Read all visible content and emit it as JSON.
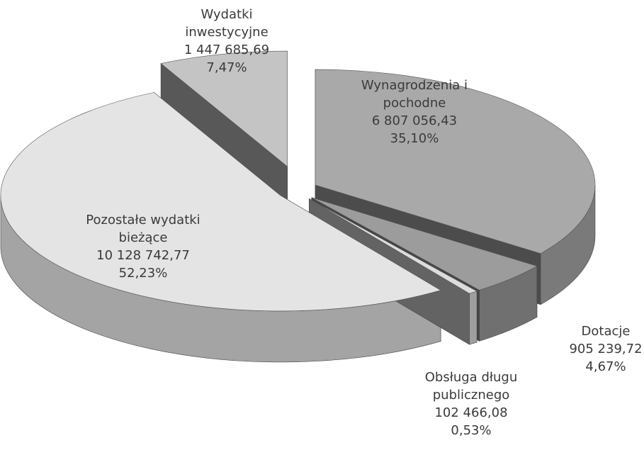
{
  "chart_data": {
    "type": "pie3d",
    "categories": [
      "Wynagrodzenia i pochodne",
      "Dotacje",
      "Obsługa długu publicznego",
      "Pozostałe wydatki bieżące",
      "Wydatki inwestycyjne"
    ],
    "values": [
      6807056.43,
      905239.72,
      102466.08,
      10128742.77,
      1447685.69
    ],
    "value_labels": [
      "6 807 056,43",
      "905 239,72",
      "102 466,08",
      "10 128 742,77",
      "1 447 685,69"
    ],
    "percents": [
      35.1,
      4.67,
      0.53,
      52.23,
      7.47
    ],
    "percent_labels": [
      "35,10%",
      "4,67%",
      "0,53%",
      "52,23%",
      "7,47%"
    ],
    "colors": [
      "#a9a9a9",
      "#9c9c9c",
      "#dcdcdc",
      "#e4e4e4",
      "#c4c4c4"
    ]
  }
}
